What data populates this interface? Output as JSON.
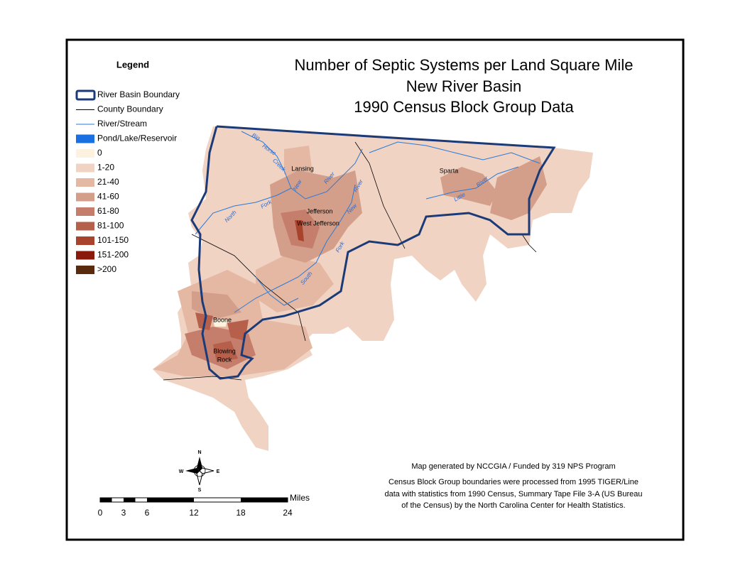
{
  "title": [
    "Number of Septic Systems per Land Square Mile",
    "New River Basin",
    "1990 Census Block Group Data"
  ],
  "legend": {
    "title": "Legend",
    "items": [
      {
        "label": "River Basin Boundary",
        "symbol": "boundary",
        "color": "#1b3a78"
      },
      {
        "label": "County Boundary",
        "symbol": "line",
        "color": "#000000"
      },
      {
        "label": "River/Stream",
        "symbol": "line",
        "color": "#2a7ad8"
      },
      {
        "label": "Pond/Lake/Reservoir",
        "symbol": "fill",
        "color": "#1a70e0"
      },
      {
        "label": "0",
        "symbol": "fill",
        "color": "#fdf1e0"
      },
      {
        "label": "1-20",
        "symbol": "fill",
        "color": "#f0d3c3"
      },
      {
        "label": "21-40",
        "symbol": "fill",
        "color": "#e4b8a3"
      },
      {
        "label": "41-60",
        "symbol": "fill",
        "color": "#d49f8a"
      },
      {
        "label": "61-80",
        "symbol": "fill",
        "color": "#c67e6c"
      },
      {
        "label": "81-100",
        "symbol": "fill",
        "color": "#b6604c"
      },
      {
        "label": "101-150",
        "symbol": "fill",
        "color": "#a8432c"
      },
      {
        "label": "151-200",
        "symbol": "fill",
        "color": "#8a1a0c"
      },
      {
        "label": ">200",
        "symbol": "fill",
        "color": "#5a2a0e"
      }
    ]
  },
  "places": [
    "Lansing",
    "Jefferson",
    "West Jefferson",
    "Sparta",
    "Boone",
    "Blowing",
    "Rock"
  ],
  "rivers": [
    "Big",
    "Horse",
    "Creek",
    "North",
    "Fork",
    "New",
    "River",
    "South",
    "Fork",
    "New",
    "River",
    "Little",
    "River"
  ],
  "compass": [
    "N",
    "S",
    "E",
    "W"
  ],
  "scale": {
    "ticks": [
      0,
      3,
      6,
      12,
      18,
      24
    ],
    "unit": "Miles"
  },
  "credits": [
    "Map generated by NCCGIA / Funded by 319 NPS Program",
    "Census Block Group boundaries were processed from 1995 TIGER/Line",
    "data with statistics from 1990 Census, Summary Tape File 3-A (US Bureau",
    "of the Census) by the North Carolina Center for Health Statistics."
  ]
}
